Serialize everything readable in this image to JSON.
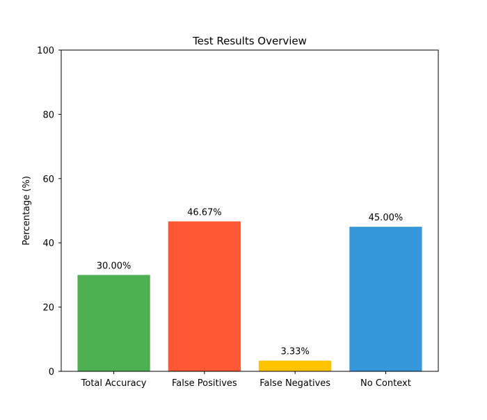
{
  "chart_data": {
    "type": "bar",
    "title": "Test Results Overview",
    "xlabel": "",
    "ylabel": "Percentage (%)",
    "ylim": [
      0,
      100
    ],
    "yticks": [
      0,
      20,
      40,
      60,
      80,
      100
    ],
    "categories": [
      "Total Accuracy",
      "False Positives",
      "False Negatives",
      "No Context"
    ],
    "values": [
      30.0,
      46.67,
      3.33,
      45.0
    ],
    "data_labels": [
      "30.00%",
      "46.67%",
      "3.33%",
      "45.00%"
    ],
    "colors": [
      "#4caf50",
      "#ff5733",
      "#ffc300",
      "#3498db"
    ],
    "grid": false,
    "legend": "none"
  }
}
